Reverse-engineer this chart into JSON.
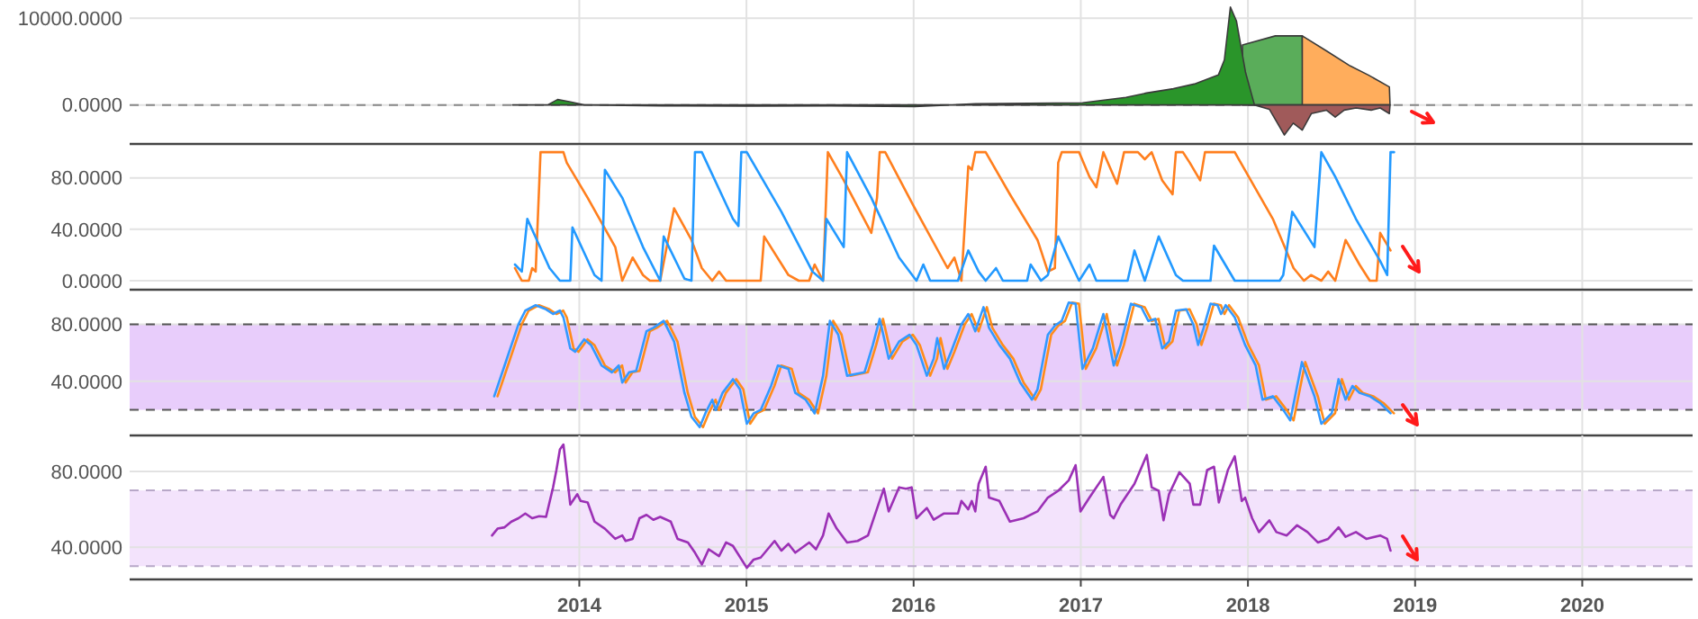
{
  "chart_data": [
    {
      "type": "area",
      "xlim": [
        2011.31,
        2020.66
      ],
      "xticks": [
        2014,
        2015,
        2016,
        2017,
        2018,
        2019,
        2020
      ],
      "ylim": [
        -4500,
        12100
      ],
      "yticks": [
        {
          "value": 0,
          "label": "0.0000"
        },
        {
          "value": 10000,
          "label": "10000.0000"
        }
      ],
      "grid": true,
      "tick_labels": "y",
      "ref_lines": [
        {
          "axis": "y",
          "value": 0,
          "color": "#888888",
          "line_style": "dashed"
        }
      ],
      "series": [
        {
          "color": "#5aad5a",
          "x": [
            2017.967,
            2018.164,
            2018.325,
            2018.33
          ],
          "values": [
            6923,
            7963,
            7963,
            0
          ]
        },
        {
          "color": "#ffad5c",
          "x": [
            2018.325,
            2018.469,
            2018.612,
            2018.72,
            2018.846,
            2018.85
          ],
          "values": [
            7963,
            6237,
            4491,
            3451,
            2079,
            0
          ]
        },
        {
          "color": "#2a952a",
          "x": [
            2013.6,
            2013.81,
            2013.87,
            2013.94,
            2014.03,
            2014.5,
            2015.0,
            2015.5,
            2016.0,
            2016.37,
            2017.01,
            2017.27,
            2017.393,
            2017.554,
            2017.679,
            2017.823,
            2017.859,
            2017.895,
            2017.931,
            2017.985,
            2018.039
          ],
          "values": [
            0,
            0,
            625,
            375,
            0,
            -100,
            -150,
            -100,
            -200,
            125,
            250,
            875,
            1372,
            1871,
            2412,
            3451,
            5197,
            11289,
            9688,
            3805,
            0
          ]
        },
        {
          "color": "#a05a5a",
          "x": [
            2018.039,
            2018.128,
            2018.218,
            2018.271,
            2018.325,
            2018.379,
            2018.469,
            2018.522,
            2018.576,
            2018.647,
            2018.737,
            2018.791,
            2018.846,
            2018.85
          ],
          "values": [
            0,
            -500,
            -3472,
            -2100,
            -2900,
            -1000,
            -600,
            -1393,
            -600,
            -350,
            -600,
            -350,
            -1000,
            0
          ]
        }
      ]
    },
    {
      "type": "line",
      "xlim": [
        2011.31,
        2020.66
      ],
      "xticks": [
        2014,
        2015,
        2016,
        2017,
        2018,
        2019,
        2020
      ],
      "ylim": [
        -7,
        105
      ],
      "yticks": [
        {
          "value": 0,
          "label": "0.0000"
        },
        {
          "value": 40,
          "label": "40.0000"
        },
        {
          "value": 80,
          "label": "80.0000"
        }
      ],
      "grid": true,
      "tick_labels": "y",
      "series": [
        {
          "color": "#ff7f1e",
          "x": [
            2013.615,
            2013.656,
            2013.698,
            2013.718,
            2013.739,
            2013.768,
            2013.905,
            2013.925,
            2014.05,
            2014.215,
            2014.257,
            2014.319,
            2014.381,
            2014.422,
            2014.484,
            2014.567,
            2014.671,
            2014.733,
            2014.795,
            2014.836,
            2014.878,
            2015.085,
            2015.106,
            2015.251,
            2015.313,
            2015.375,
            2015.408,
            2015.458,
            2015.487,
            2015.582,
            2015.747,
            2015.781,
            2015.797,
            2015.83,
            2015.996,
            2016.203,
            2016.244,
            2016.286,
            2016.327,
            2016.348,
            2016.369,
            2016.431,
            2016.576,
            2016.741,
            2016.803,
            2016.845,
            2016.865,
            2016.886,
            2016.99,
            2017.052,
            2017.093,
            2017.135,
            2017.217,
            2017.259,
            2017.342,
            2017.383,
            2017.424,
            2017.487,
            2017.549,
            2017.569,
            2017.611,
            2017.652,
            2017.714,
            2017.743,
            2017.921,
            2018.149,
            2018.273,
            2018.335,
            2018.377,
            2018.439,
            2018.48,
            2018.522,
            2018.584,
            2018.667,
            2018.729,
            2018.77,
            2018.791,
            2018.853
          ],
          "values": [
            9.8,
            0,
            0,
            9.8,
            7.1,
            100,
            100,
            91.8,
            64.5,
            26.2,
            0,
            18,
            4.4,
            0,
            0,
            56.3,
            31.7,
            9.8,
            0,
            7.1,
            0,
            0,
            34.4,
            4.4,
            0,
            0,
            12.6,
            0,
            100,
            78.1,
            37.2,
            64.5,
            100,
            100,
            59,
            9.8,
            18,
            0,
            89.1,
            86.3,
            100,
            100,
            67.2,
            31.7,
            7.1,
            9.8,
            91.8,
            100,
            100,
            80.9,
            72.7,
            100,
            75.4,
            100,
            100,
            94.5,
            100,
            78.1,
            67.2,
            100,
            100,
            91.8,
            78.1,
            100,
            100,
            48.1,
            9.8,
            0,
            4.4,
            0,
            7.1,
            0,
            31.7,
            12.6,
            0,
            0,
            37.2,
            23.5
          ]
        },
        {
          "color": "#2299ff",
          "x": [
            2013.615,
            2013.656,
            2013.689,
            2013.822,
            2013.884,
            2013.946,
            2013.959,
            2014.091,
            2014.133,
            2014.153,
            2014.257,
            2014.381,
            2014.484,
            2014.505,
            2014.629,
            2014.671,
            2014.692,
            2014.733,
            2014.919,
            2014.952,
            2014.969,
            2015.002,
            2015.209,
            2015.395,
            2015.458,
            2015.478,
            2015.582,
            2015.602,
            2015.747,
            2015.913,
            2016.017,
            2016.058,
            2016.099,
            2016.265,
            2016.327,
            2016.389,
            2016.431,
            2016.493,
            2016.534,
            2016.679,
            2016.7,
            2016.762,
            2016.803,
            2016.865,
            2016.99,
            2017.052,
            2017.093,
            2017.28,
            2017.321,
            2017.383,
            2017.466,
            2017.569,
            2017.611,
            2017.776,
            2017.797,
            2017.921,
            2018.19,
            2018.211,
            2018.265,
            2018.398,
            2018.439,
            2018.522,
            2018.646,
            2018.791,
            2018.833,
            2018.853,
            2018.874
          ],
          "values": [
            12.6,
            7.1,
            48.1,
            9.8,
            0,
            0,
            41.5,
            4.4,
            0,
            86.3,
            64.5,
            26.2,
            0,
            34.4,
            1.6,
            0,
            100,
            100,
            48.1,
            42.6,
            100,
            100,
            53.6,
            7.1,
            0,
            48.1,
            26.2,
            100,
            64.5,
            18,
            0,
            12.6,
            0,
            0,
            23.5,
            7.1,
            0,
            9.8,
            0,
            0,
            12.6,
            0,
            4.4,
            34.4,
            0,
            12.6,
            0,
            0,
            23.5,
            0,
            34.4,
            4.4,
            0,
            0,
            27.3,
            0,
            0,
            4.4,
            53.6,
            26.2,
            100,
            80.9,
            48.1,
            15.3,
            4.4,
            100,
            100
          ]
        }
      ]
    },
    {
      "type": "line",
      "xlim": [
        2011.31,
        2020.66
      ],
      "xticks": [
        2014,
        2015,
        2016,
        2017,
        2018,
        2019,
        2020
      ],
      "ylim": [
        2,
        103
      ],
      "yticks": [
        {
          "value": 40,
          "label": "40.0000"
        },
        {
          "value": 80,
          "label": "80.0000"
        }
      ],
      "grid": true,
      "tick_labels": "y",
      "bands": [
        {
          "axis": "y",
          "from": 20,
          "to": 80,
          "color": "#e8cdfb"
        }
      ],
      "ref_lines": [
        {
          "axis": "y",
          "value": 20,
          "color": "#555555",
          "line_style": "dashed"
        },
        {
          "axis": "y",
          "value": 80,
          "color": "#555555",
          "line_style": "dashed"
        }
      ],
      "series": [
        {
          "color": "#ff8c1a",
          "x": [
            2013.511,
            2013.573,
            2013.656,
            2013.697,
            2013.759,
            2013.821,
            2013.863,
            2013.904,
            2013.925,
            2013.966,
            2013.995,
            2014.049,
            2014.09,
            2014.153,
            2014.215,
            2014.256,
            2014.277,
            2014.318,
            2014.36,
            2014.422,
            2014.463,
            2014.525,
            2014.587,
            2014.649,
            2014.691,
            2014.74,
            2014.774,
            2014.815,
            2014.836,
            2014.877,
            2014.939,
            2014.981,
            2015.022,
            2015.063,
            2015.105,
            2015.167,
            2015.208,
            2015.271,
            2015.312,
            2015.374,
            2015.428,
            2015.478,
            2015.519,
            2015.569,
            2015.622,
            2015.726,
            2015.776,
            2015.817,
            2015.871,
            2015.933,
            2015.995,
            2016.037,
            2016.099,
            2016.14,
            2016.161,
            2016.202,
            2016.244,
            2016.306,
            2016.347,
            2016.389,
            2016.438,
            2016.471,
            2016.533,
            2016.596,
            2016.658,
            2016.728,
            2016.761,
            2016.823,
            2016.865,
            2016.906,
            2016.948,
            2016.989,
            2017.03,
            2017.092,
            2017.155,
            2017.217,
            2017.258,
            2017.32,
            2017.382,
            2017.424,
            2017.465,
            2017.507,
            2017.548,
            2017.589,
            2017.651,
            2017.693,
            2017.722,
            2017.755,
            2017.796,
            2017.838,
            2017.859,
            2017.887,
            2017.941,
            2018.003,
            2018.066,
            2018.107,
            2018.169,
            2018.231,
            2018.273,
            2018.343,
            2018.418,
            2018.459,
            2018.521,
            2018.562,
            2018.604,
            2018.645,
            2018.687,
            2018.749,
            2018.811,
            2018.873
          ],
          "values": [
            29.5,
            51.1,
            80,
            89.6,
            93.4,
            90.5,
            87.2,
            89.6,
            84.8,
            63.1,
            60.7,
            69.4,
            65.5,
            51.1,
            46.3,
            51.1,
            39.1,
            46.3,
            47.3,
            75.1,
            77.5,
            82.4,
            67.9,
            31.9,
            15.1,
            7.8,
            17.5,
            27.1,
            19.9,
            31.9,
            41.5,
            34.3,
            10.2,
            17.5,
            19.9,
            36.7,
            51.1,
            48.7,
            31.9,
            27.1,
            17.5,
            43.9,
            82.4,
            72.7,
            43.9,
            46.3,
            65.5,
            83.8,
            55.9,
            67.9,
            72.7,
            65.5,
            43.9,
            55.9,
            70.3,
            48.7,
            60.7,
            80,
            87.2,
            75.1,
            92,
            77.5,
            65.5,
            55.9,
            39.1,
            27.1,
            34.3,
            72.7,
            79,
            82.4,
            95.3,
            94.4,
            48.7,
            63.1,
            87.2,
            51.1,
            65.5,
            94.4,
            92,
            82.4,
            83.8,
            63.1,
            67.9,
            89.6,
            90.5,
            80,
            65.5,
            77.5,
            94.4,
            93.4,
            87.2,
            93.4,
            84.8,
            65.5,
            51.1,
            27.1,
            29.5,
            19.9,
            12.6,
            53.5,
            29.5,
            10.2,
            17.5,
            41.5,
            27.1,
            36.7,
            31.9,
            29.5,
            24.7,
            17.5
          ]
        },
        {
          "color": "#3399ff",
          "x": [
            2013.491,
            2013.553,
            2013.636,
            2013.677,
            2013.739,
            2013.801,
            2013.843,
            2013.884,
            2013.905,
            2013.946,
            2013.975,
            2014.029,
            2014.07,
            2014.133,
            2014.195,
            2014.236,
            2014.257,
            2014.298,
            2014.34,
            2014.402,
            2014.443,
            2014.505,
            2014.567,
            2014.629,
            2014.671,
            2014.72,
            2014.754,
            2014.795,
            2014.816,
            2014.857,
            2014.919,
            2014.961,
            2015.002,
            2015.043,
            2015.085,
            2015.147,
            2015.188,
            2015.251,
            2015.292,
            2015.354,
            2015.408,
            2015.458,
            2015.499,
            2015.549,
            2015.602,
            2015.706,
            2015.756,
            2015.797,
            2015.851,
            2015.913,
            2015.975,
            2016.017,
            2016.079,
            2016.12,
            2016.141,
            2016.182,
            2016.224,
            2016.286,
            2016.327,
            2016.369,
            2016.418,
            2016.451,
            2016.513,
            2016.576,
            2016.638,
            2016.708,
            2016.741,
            2016.803,
            2016.845,
            2016.886,
            2016.928,
            2016.969,
            2017.01,
            2017.072,
            2017.135,
            2017.197,
            2017.238,
            2017.3,
            2017.362,
            2017.404,
            2017.445,
            2017.487,
            2017.528,
            2017.569,
            2017.631,
            2017.673,
            2017.702,
            2017.735,
            2017.776,
            2017.818,
            2017.839,
            2017.867,
            2017.921,
            2017.983,
            2018.046,
            2018.087,
            2018.149,
            2018.211,
            2018.253,
            2018.323,
            2018.398,
            2018.439,
            2018.501,
            2018.542,
            2018.584,
            2018.625,
            2018.667,
            2018.729,
            2018.791,
            2018.853
          ],
          "values": [
            29.5,
            51.1,
            80,
            89.6,
            93.4,
            90.5,
            87.2,
            89.6,
            84.8,
            63.1,
            60.7,
            69.4,
            65.5,
            51.1,
            46.3,
            51.1,
            39.1,
            46.3,
            47.3,
            75.1,
            77.5,
            82.4,
            67.9,
            31.9,
            15.1,
            7.8,
            17.5,
            27.1,
            19.9,
            31.9,
            41.5,
            34.3,
            10.2,
            17.5,
            19.9,
            36.7,
            51.1,
            48.7,
            31.9,
            27.1,
            17.5,
            43.9,
            82.4,
            72.7,
            43.9,
            46.3,
            65.5,
            83.8,
            55.9,
            67.9,
            72.7,
            65.5,
            43.9,
            55.9,
            70.3,
            48.7,
            60.7,
            80,
            87.2,
            75.1,
            92,
            77.5,
            65.5,
            55.9,
            39.1,
            27.1,
            34.3,
            72.7,
            79,
            82.4,
            95.3,
            94.4,
            48.7,
            63.1,
            87.2,
            51.1,
            65.5,
            94.4,
            92,
            82.4,
            83.8,
            63.1,
            67.9,
            89.6,
            90.5,
            80,
            65.5,
            77.5,
            94.4,
            93.4,
            87.2,
            93.4,
            84.8,
            65.5,
            51.1,
            27.1,
            29.5,
            19.9,
            12.6,
            53.5,
            29.5,
            10.2,
            17.5,
            41.5,
            27.1,
            36.7,
            31.9,
            29.5,
            24.7,
            17.5
          ]
        }
      ]
    },
    {
      "type": "line",
      "xlim": [
        2011.31,
        2020.66
      ],
      "xticks": [
        2014,
        2015,
        2016,
        2017,
        2018,
        2019,
        2020
      ],
      "ylim": [
        23,
        99
      ],
      "yticks": [
        {
          "value": 40,
          "label": "40.0000"
        },
        {
          "value": 80,
          "label": "80.0000"
        }
      ],
      "grid": true,
      "bands": [
        {
          "axis": "y",
          "from": 30,
          "to": 70,
          "color": "#f3e3fc"
        }
      ],
      "ref_lines": [
        {
          "axis": "y",
          "value": 30,
          "color": "#b8a8c8",
          "line_style": "dashed"
        },
        {
          "axis": "y",
          "value": 70,
          "color": "#b8a8c8",
          "line_style": "dashed"
        }
      ],
      "series": [
        {
          "color": "#9b30b5",
          "x": [
            2013.478,
            2013.511,
            2013.553,
            2013.594,
            2013.636,
            2013.677,
            2013.718,
            2013.76,
            2013.801,
            2013.843,
            2013.863,
            2013.884,
            2013.905,
            2013.925,
            2013.946,
            2013.988,
            2014.008,
            2014.05,
            2014.091,
            2014.153,
            2014.215,
            2014.257,
            2014.277,
            2014.319,
            2014.36,
            2014.402,
            2014.443,
            2014.484,
            2014.547,
            2014.588,
            2014.65,
            2014.692,
            2014.733,
            2014.774,
            2014.836,
            2014.878,
            2014.919,
            2015.002,
            2015.043,
            2015.085,
            2015.168,
            2015.209,
            2015.251,
            2015.292,
            2015.375,
            2015.416,
            2015.458,
            2015.491,
            2015.54,
            2015.602,
            2015.665,
            2015.727,
            2015.789,
            2015.822,
            2015.851,
            2015.913,
            2015.954,
            2015.988,
            2016.017,
            2016.079,
            2016.12,
            2016.182,
            2016.265,
            2016.286,
            2016.327,
            2016.348,
            2016.369,
            2016.389,
            2016.431,
            2016.451,
            2016.513,
            2016.576,
            2016.658,
            2016.741,
            2016.803,
            2016.865,
            2016.928,
            2016.969,
            2016.998,
            2017.052,
            2017.135,
            2017.176,
            2017.197,
            2017.238,
            2017.321,
            2017.395,
            2017.424,
            2017.466,
            2017.495,
            2017.528,
            2017.59,
            2017.652,
            2017.673,
            2017.714,
            2017.756,
            2017.797,
            2017.826,
            2017.88,
            2017.921,
            2017.963,
            2017.983,
            2018.025,
            2018.066,
            2018.128,
            2018.17,
            2018.232,
            2018.294,
            2018.356,
            2018.418,
            2018.48,
            2018.542,
            2018.584,
            2018.646,
            2018.708,
            2018.791,
            2018.832,
            2018.853
          ],
          "values": [
            46.2,
            49.8,
            50.5,
            53.5,
            55.3,
            57.8,
            55.3,
            56.4,
            56,
            71.6,
            80.7,
            91.6,
            94.2,
            78.9,
            62.5,
            68,
            64.4,
            63.6,
            53.5,
            49.8,
            44.4,
            46.2,
            43.3,
            44.4,
            55.3,
            57.1,
            54.5,
            56,
            53.5,
            44.4,
            42.5,
            37.1,
            30.9,
            38.9,
            35.3,
            42.5,
            40.7,
            29.1,
            33.5,
            34.5,
            43.3,
            38.2,
            41.8,
            37.1,
            42.5,
            38.9,
            46.2,
            57.8,
            49.8,
            42.5,
            43.3,
            46.2,
            62.5,
            70.9,
            58.9,
            71.6,
            70.9,
            71.6,
            55.3,
            60.7,
            54.5,
            57.8,
            57.8,
            64.4,
            60,
            64.4,
            58.9,
            73.5,
            82.5,
            66.2,
            64.4,
            53.5,
            55.3,
            58.9,
            66.2,
            69.8,
            75.3,
            83.3,
            58.9,
            66.2,
            77.1,
            57.1,
            55.3,
            62.5,
            73.5,
            88.7,
            71.6,
            69.8,
            54.2,
            68,
            79.6,
            73.5,
            62.5,
            62.5,
            80.7,
            82.5,
            63.6,
            80.7,
            88,
            64.4,
            66.2,
            55.3,
            48,
            54.2,
            48,
            46.2,
            51.6,
            48,
            42.5,
            44.4,
            50.5,
            45.5,
            48,
            44.4,
            46.2,
            44.4,
            38.2
          ]
        }
      ]
    }
  ]
}
